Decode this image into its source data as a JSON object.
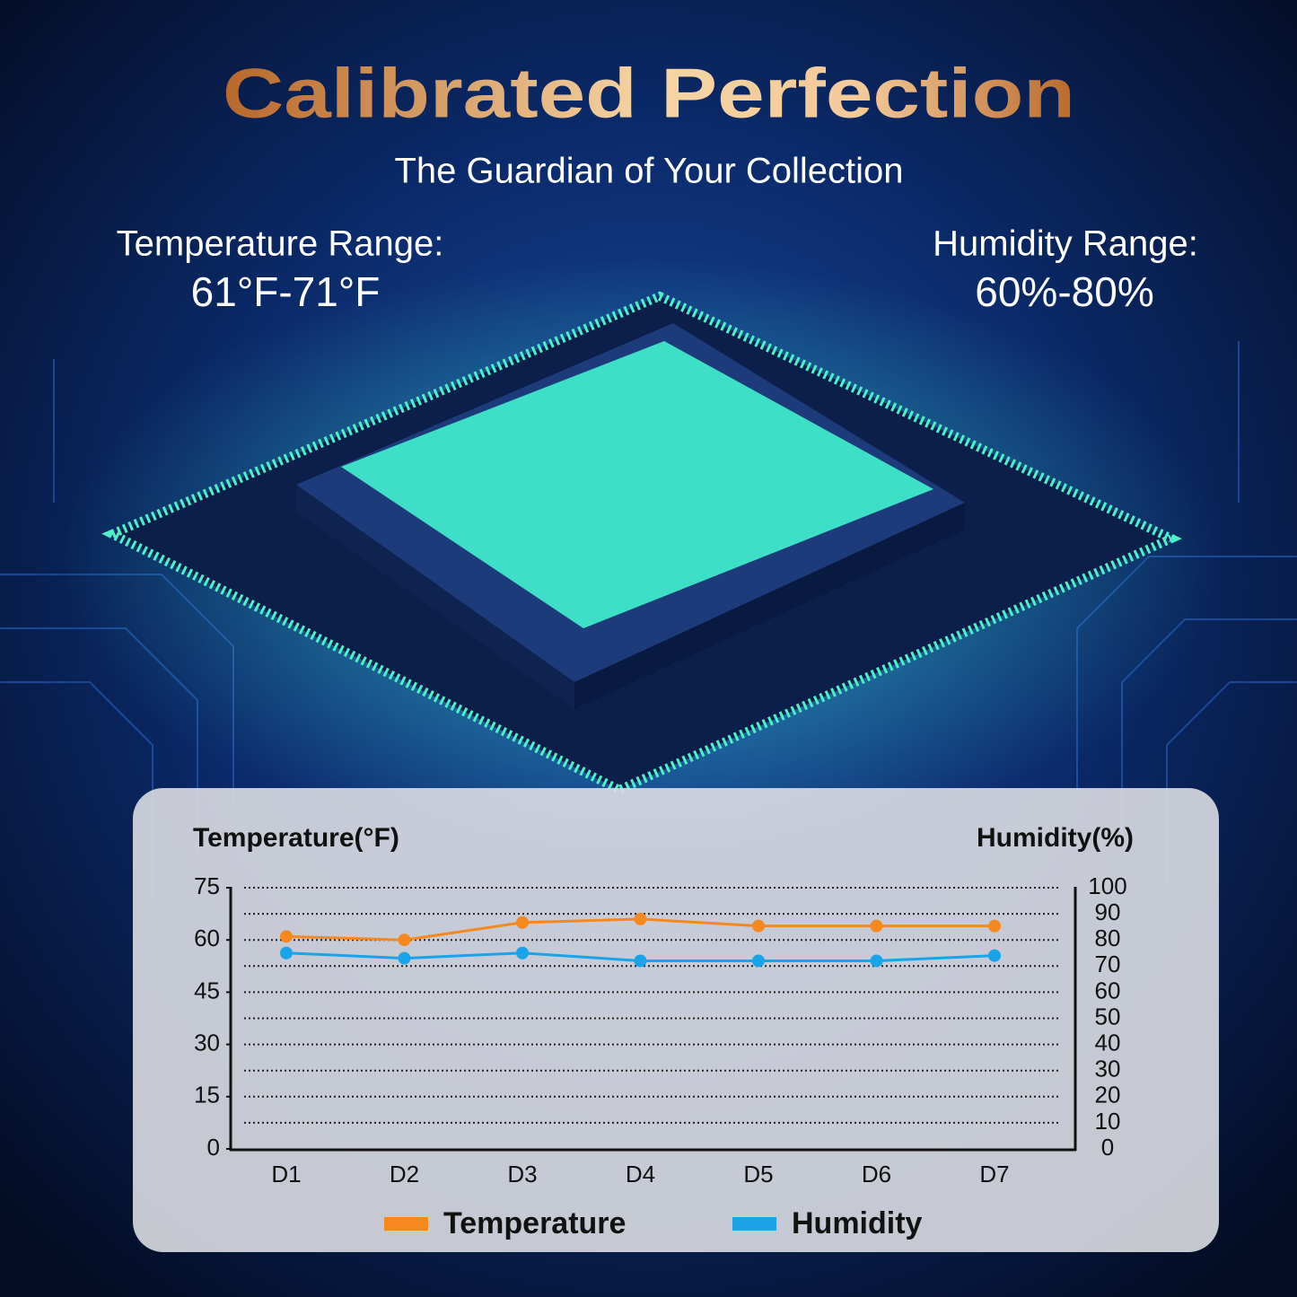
{
  "header": {
    "title": "Calibrated Perfection",
    "subtitle": "The Guardian of Your Collection"
  },
  "specs": {
    "temperature_label": "Temperature Range:",
    "temperature_value": "61°F-71°F",
    "humidity_label": "Humidity Range:",
    "humidity_value": "60%-80%"
  },
  "chart_data": {
    "type": "line",
    "y_label": "Temperature(°F)",
    "y2_label": "Humidity(%)",
    "categories": [
      "D1",
      "D2",
      "D3",
      "D4",
      "D5",
      "D6",
      "D7"
    ],
    "series": [
      {
        "name": "Temperature",
        "color": "#f5891f",
        "values": [
          61,
          60,
          65,
          66,
          64,
          64,
          64
        ]
      },
      {
        "name": "Humidity",
        "color": "#1aa3e8",
        "axis": "y2",
        "values": [
          75,
          73,
          75,
          72,
          72,
          72,
          74
        ]
      }
    ],
    "ylim": [
      0,
      75
    ],
    "yticks": [
      0,
      15,
      30,
      45,
      60,
      75
    ],
    "y2lim": [
      0,
      100
    ],
    "y2ticks": [
      0,
      10,
      20,
      30,
      40,
      50,
      60,
      70,
      80,
      90,
      100
    ],
    "grid": true,
    "legend": "bottom"
  }
}
